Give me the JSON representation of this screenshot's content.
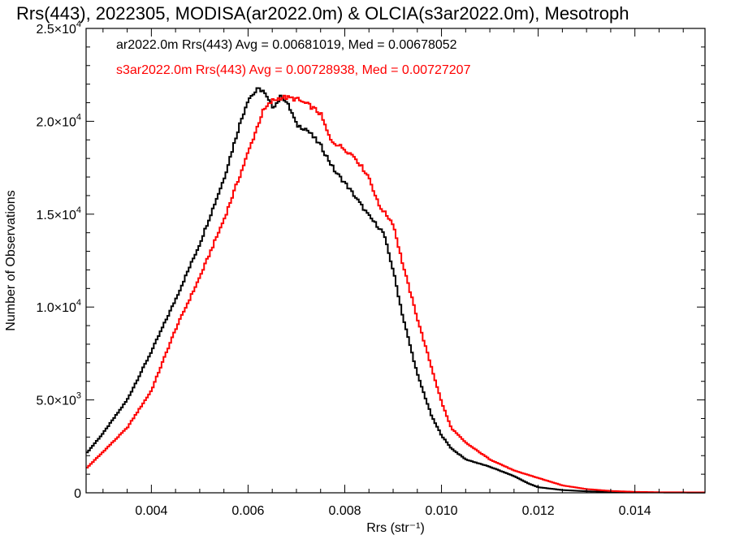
{
  "chart_data": {
    "type": "line",
    "title": "Rrs(443), 2022305, MODISA(ar2022.0m) & OLCIA(s3ar2022.0m), Mesotroph",
    "xlabel": "Rrs (str⁻¹)",
    "ylabel": "Number of Observations",
    "xlim": [
      0.00265,
      0.01545
    ],
    "ylim": [
      0,
      25000
    ],
    "x_ticks": [
      0.004,
      0.006,
      0.008,
      0.01,
      0.012,
      0.014
    ],
    "x_tick_labels": [
      "0.004",
      "0.006",
      "0.008",
      "0.010",
      "0.012",
      "0.014"
    ],
    "y_ticks": [
      0,
      5000,
      10000,
      15000,
      20000,
      25000
    ],
    "y_tick_labels": [
      {
        "mant": "0",
        "exp": ""
      },
      {
        "mant": "5.0×10",
        "exp": "3"
      },
      {
        "mant": "1.0×10",
        "exp": "4"
      },
      {
        "mant": "1.5×10",
        "exp": "4"
      },
      {
        "mant": "2.0×10",
        "exp": "4"
      },
      {
        "mant": "2.5×10",
        "exp": "4"
      }
    ],
    "grid": false,
    "step": true,
    "annotations": [
      {
        "text": "ar2022.0m Rrs(443) Avg = 0.00681019, Med = 0.00678052",
        "color": "#000000"
      },
      {
        "text": "s3ar2022.0m Rrs(443) Avg = 0.00728938, Med = 0.00727207",
        "color": "#ff0000"
      }
    ],
    "series": [
      {
        "color": "#000000",
        "x": [
          0.00265,
          0.003,
          0.0035,
          0.004,
          0.0045,
          0.005,
          0.0055,
          0.0058,
          0.006,
          0.0062,
          0.0063,
          0.0064,
          0.0065,
          0.0066,
          0.0067,
          0.0068,
          0.0069,
          0.007,
          0.0072,
          0.0075,
          0.0078,
          0.008,
          0.0082,
          0.0085,
          0.0088,
          0.009,
          0.0092,
          0.0095,
          0.0098,
          0.01,
          0.0102,
          0.0105,
          0.011,
          0.0115,
          0.0118,
          0.012,
          0.0125,
          0.013,
          0.0135,
          0.014,
          0.0145,
          0.01545
        ],
        "y": [
          2100,
          3200,
          5000,
          7600,
          10400,
          13400,
          16900,
          19600,
          21200,
          21700,
          21700,
          21200,
          20800,
          21000,
          21400,
          21000,
          20500,
          19800,
          19600,
          18700,
          17300,
          16700,
          16000,
          14900,
          14000,
          12000,
          9500,
          6400,
          4100,
          3100,
          2400,
          1800,
          1400,
          900,
          500,
          300,
          150,
          80,
          50,
          30,
          20,
          10
        ]
      },
      {
        "color": "#ff0000",
        "x": [
          0.00265,
          0.003,
          0.0035,
          0.004,
          0.0045,
          0.005,
          0.0055,
          0.006,
          0.0063,
          0.0065,
          0.0067,
          0.007,
          0.0073,
          0.0075,
          0.0077,
          0.008,
          0.0082,
          0.0085,
          0.0087,
          0.009,
          0.0092,
          0.0095,
          0.0098,
          0.01,
          0.0102,
          0.0105,
          0.011,
          0.0115,
          0.012,
          0.0125,
          0.013,
          0.0135,
          0.014,
          0.0145,
          0.01545
        ],
        "y": [
          1300,
          2200,
          3500,
          5500,
          8800,
          11600,
          14700,
          18300,
          20500,
          21100,
          21300,
          21200,
          20800,
          20400,
          19000,
          18500,
          18100,
          17000,
          15500,
          14500,
          12300,
          9400,
          6700,
          4900,
          3500,
          2700,
          1800,
          1200,
          800,
          400,
          200,
          100,
          50,
          30,
          20
        ]
      }
    ]
  }
}
